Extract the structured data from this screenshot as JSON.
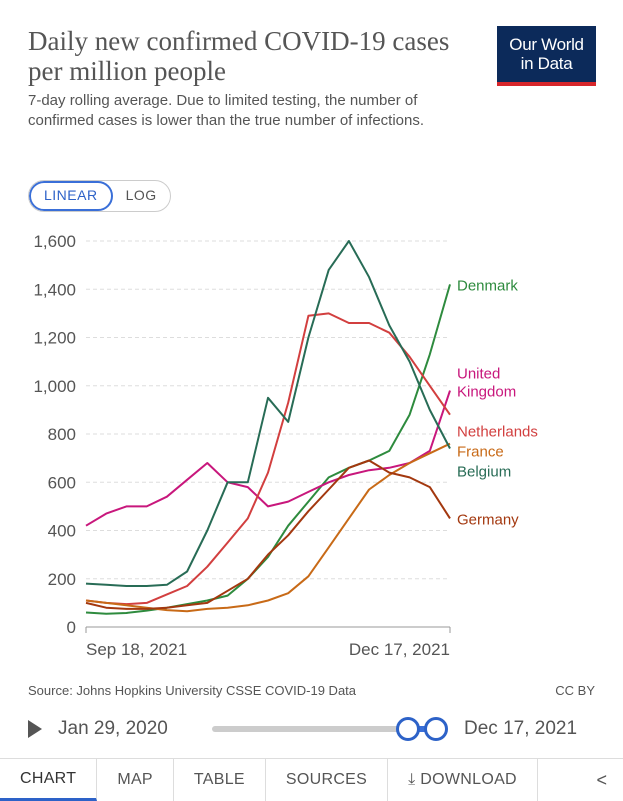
{
  "header": {
    "title": "Daily new confirmed COVID-19 cases per million people",
    "subtitle": "7-day rolling average. Due to limited testing, the number of confirmed cases is lower than the true number of infections.",
    "logo_line1": "Our World",
    "logo_line2": "in Data"
  },
  "scale_toggle": {
    "linear": "LINEAR",
    "log": "LOG",
    "selected": "LINEAR"
  },
  "chart_data": {
    "type": "line",
    "title": "Daily new confirmed COVID-19 cases per million people",
    "xlabel": "",
    "ylabel": "",
    "ylim": [
      0,
      1600
    ],
    "yticks": [
      0,
      200,
      400,
      600,
      800,
      1000,
      1200,
      1400,
      1600
    ],
    "ytick_labels": [
      "0",
      "200",
      "400",
      "600",
      "800",
      "1,000",
      "1,200",
      "1,400",
      "1,600"
    ],
    "x_start_label": "Sep 18, 2021",
    "x_end_label": "Dec 17, 2021",
    "x": [
      0,
      5,
      10,
      15,
      20,
      25,
      30,
      35,
      40,
      45,
      50,
      55,
      60,
      65,
      70,
      75,
      80,
      85,
      90
    ],
    "grid": true,
    "legend": "line-end labels",
    "series": [
      {
        "name": "Denmark",
        "color": "#2e8b3e",
        "values": [
          60,
          55,
          58,
          68,
          80,
          95,
          110,
          130,
          200,
          290,
          420,
          520,
          620,
          660,
          690,
          730,
          880,
          1130,
          1420
        ]
      },
      {
        "name": "United Kingdom",
        "color": "#c8177c",
        "values": [
          420,
          470,
          500,
          500,
          540,
          610,
          680,
          600,
          580,
          500,
          520,
          560,
          600,
          630,
          650,
          660,
          680,
          730,
          980
        ]
      },
      {
        "name": "Netherlands",
        "color": "#d23f3f",
        "values": [
          110,
          100,
          95,
          100,
          135,
          170,
          250,
          350,
          450,
          640,
          930,
          1290,
          1300,
          1260,
          1260,
          1220,
          1120,
          1000,
          880
        ]
      },
      {
        "name": "France",
        "color": "#c86a17",
        "values": [
          110,
          100,
          90,
          80,
          70,
          65,
          75,
          80,
          90,
          110,
          140,
          210,
          330,
          450,
          570,
          630,
          680,
          720,
          760
        ]
      },
      {
        "name": "Belgium",
        "color": "#286c56",
        "values": [
          180,
          175,
          170,
          170,
          175,
          230,
          400,
          600,
          600,
          950,
          850,
          1200,
          1480,
          1600,
          1450,
          1250,
          1100,
          900,
          740
        ]
      },
      {
        "name": "Germany",
        "color": "#a3380f",
        "values": [
          100,
          80,
          75,
          75,
          80,
          90,
          100,
          150,
          200,
          300,
          380,
          480,
          570,
          660,
          690,
          640,
          620,
          580,
          450
        ]
      }
    ]
  },
  "footer": {
    "source": "Source: Johns Hopkins University CSSE COVID-19 Data",
    "license": "CC BY"
  },
  "timeline": {
    "start_label": "Jan 29, 2020",
    "end_label": "Dec 17, 2021"
  },
  "tabs": [
    "CHART",
    "MAP",
    "TABLE",
    "SOURCES",
    "DOWNLOAD"
  ],
  "active_tab": "CHART"
}
